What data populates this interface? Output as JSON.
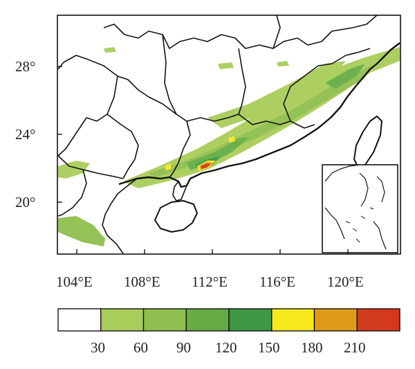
{
  "map": {
    "lat_labels": [
      "28°",
      "24°",
      "20°"
    ],
    "lon_labels": [
      "104°E",
      "108°E",
      "112°E",
      "116°E",
      "120°E"
    ],
    "colors": {
      "band_30": "#a9cd5a",
      "band_60": "#8fbf4e",
      "band_90": "#66ac45",
      "band_120": "#3d9745",
      "band_150": "#f7e81e",
      "band_180": "#e09a1b",
      "band_210": "#d3391d"
    }
  },
  "legend": {
    "labels": [
      "30",
      "60",
      "90",
      "120",
      "150",
      "180",
      "210"
    ],
    "colors": [
      "#ffffff",
      "#a9cd5a",
      "#8fbf4e",
      "#66ac45",
      "#3d9745",
      "#f7e81e",
      "#e09a1b",
      "#d3391d"
    ]
  }
}
